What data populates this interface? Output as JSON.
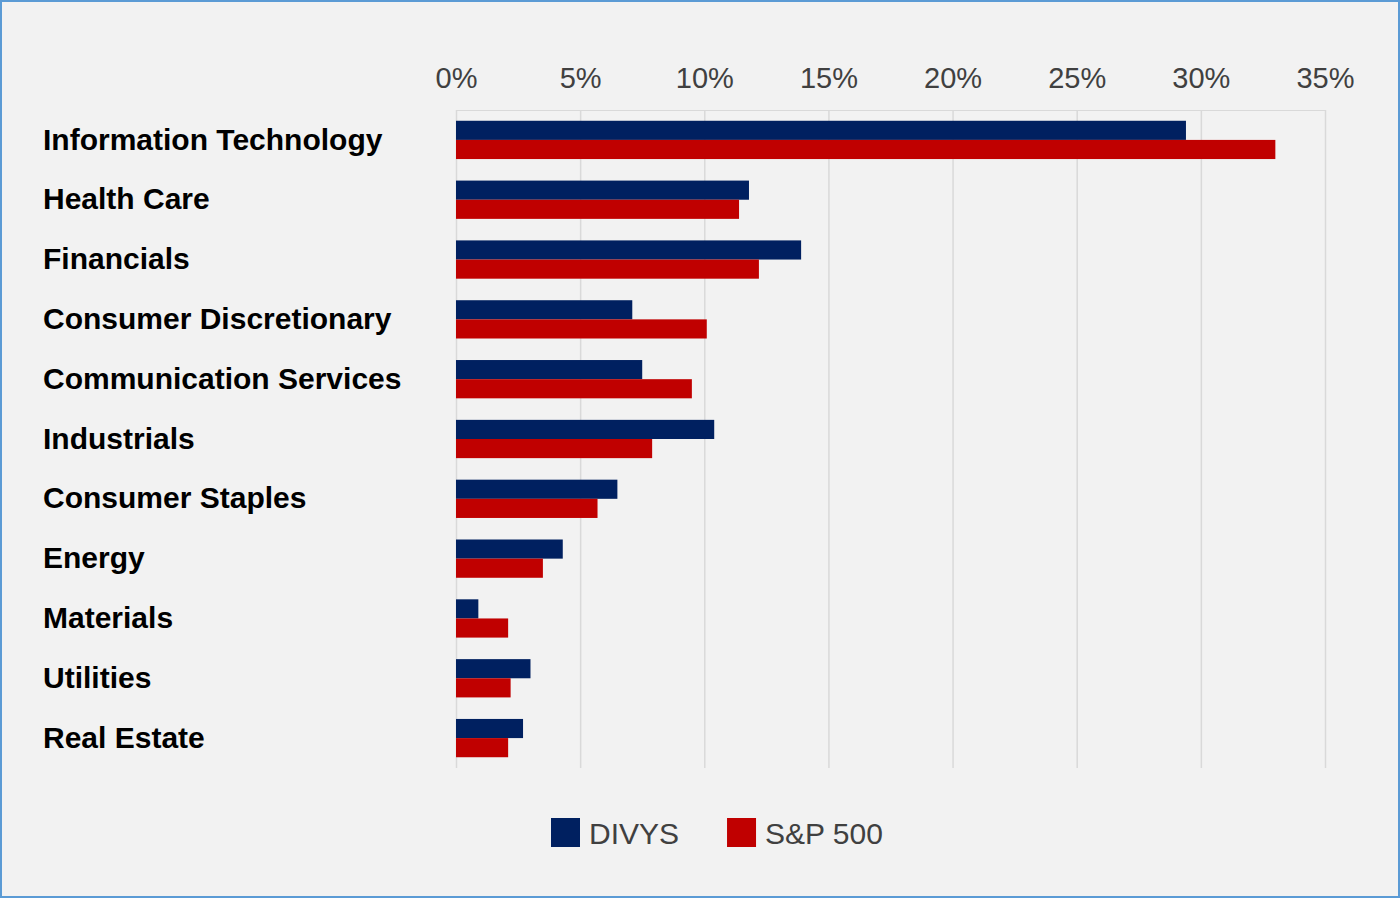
{
  "chart_data": {
    "type": "bar",
    "orientation": "horizontal",
    "grid": true,
    "legend": "bottom",
    "categories": [
      "Information Technology",
      "Health Care",
      "Financials",
      "Consumer Discretionary",
      "Communication Services",
      "Industrials",
      "Consumer Staples",
      "Energy",
      "Materials",
      "Utilities",
      "Real Estate"
    ],
    "series": [
      {
        "name": "DIVYS",
        "color": "#002060",
        "values": [
          29.4,
          11.8,
          13.9,
          7.1,
          7.5,
          10.4,
          6.5,
          4.3,
          0.9,
          3.0,
          2.7
        ]
      },
      {
        "name": "S&P 500",
        "color": "#c00000",
        "values": [
          33.0,
          11.4,
          12.2,
          10.1,
          9.5,
          7.9,
          5.7,
          3.5,
          2.1,
          2.2,
          2.1
        ]
      }
    ],
    "xlim": [
      0,
      35
    ],
    "xticks": [
      {
        "value": 0,
        "label": "0%"
      },
      {
        "value": 5,
        "label": "5%"
      },
      {
        "value": 10,
        "label": "10%"
      },
      {
        "value": 15,
        "label": "15%"
      },
      {
        "value": 20,
        "label": "20%"
      },
      {
        "value": 25,
        "label": "25%"
      },
      {
        "value": 30,
        "label": "30%"
      },
      {
        "value": 35,
        "label": "35%"
      }
    ]
  }
}
